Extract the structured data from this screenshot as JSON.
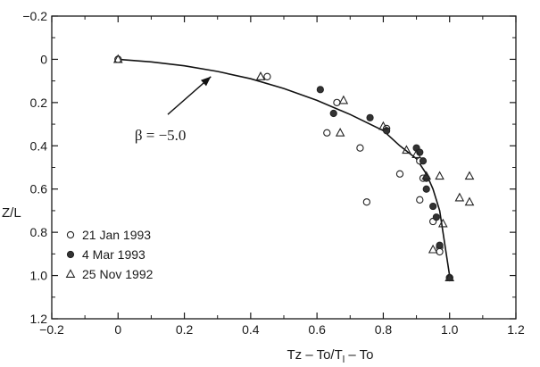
{
  "chart_data": {
    "type": "scatter",
    "title": "",
    "xlabel": "Tz – To/T",
    "xlabel_subscript": "l",
    "xlabel_suffix": " – To",
    "ylabel": "Z/L",
    "xlim": [
      -0.2,
      1.2
    ],
    "ylim": [
      -0.2,
      1.2
    ],
    "y_inverted": true,
    "x_ticks": [
      -0.2,
      0,
      0.2,
      0.4,
      0.6,
      0.8,
      1.0,
      1.2
    ],
    "x_tick_labels": [
      "−0.2",
      "0",
      "0.2",
      "0.4",
      "0.6",
      "0.8",
      "1.0",
      "1.2"
    ],
    "y_ticks": [
      -0.2,
      0,
      0.2,
      0.4,
      0.6,
      0.8,
      1.0,
      1.2
    ],
    "y_tick_labels": [
      "−0.2",
      "0",
      "0.2",
      "0.4",
      "0.6",
      "0.8",
      "1.0",
      "1.2"
    ],
    "grid": false,
    "legend_position": "bottom-left",
    "series": [
      {
        "name": "21 Jan 1993",
        "marker": "open-circle",
        "points": [
          [
            0.0,
            0.0
          ],
          [
            0.45,
            0.08
          ],
          [
            0.66,
            0.2
          ],
          [
            0.63,
            0.34
          ],
          [
            0.73,
            0.41
          ],
          [
            0.81,
            0.32
          ],
          [
            0.91,
            0.47
          ],
          [
            0.92,
            0.55
          ],
          [
            0.85,
            0.53
          ],
          [
            0.75,
            0.66
          ],
          [
            0.91,
            0.65
          ],
          [
            0.95,
            0.75
          ],
          [
            0.97,
            0.87
          ],
          [
            0.97,
            0.89
          ],
          [
            1.0,
            1.01
          ]
        ]
      },
      {
        "name": "4 Mar 1993",
        "marker": "filled-circle",
        "points": [
          [
            0.61,
            0.14
          ],
          [
            0.65,
            0.25
          ],
          [
            0.76,
            0.27
          ],
          [
            0.81,
            0.33
          ],
          [
            0.9,
            0.41
          ],
          [
            0.91,
            0.43
          ],
          [
            0.92,
            0.47
          ],
          [
            0.93,
            0.55
          ],
          [
            0.93,
            0.6
          ],
          [
            0.95,
            0.68
          ],
          [
            0.96,
            0.73
          ],
          [
            0.97,
            0.86
          ],
          [
            1.0,
            1.01
          ]
        ]
      },
      {
        "name": "25 Nov 1992",
        "marker": "open-triangle",
        "points": [
          [
            0.0,
            0.0
          ],
          [
            0.43,
            0.08
          ],
          [
            0.68,
            0.19
          ],
          [
            0.67,
            0.34
          ],
          [
            0.8,
            0.31
          ],
          [
            0.9,
            0.44
          ],
          [
            0.87,
            0.42
          ],
          [
            0.93,
            0.54
          ],
          [
            0.97,
            0.54
          ],
          [
            0.98,
            0.76
          ],
          [
            1.03,
            0.64
          ],
          [
            1.06,
            0.54
          ],
          [
            1.06,
            0.66
          ],
          [
            0.95,
            0.88
          ],
          [
            1.0,
            1.01
          ]
        ]
      }
    ],
    "curve": {
      "points": [
        [
          0.0,
          0.0
        ],
        [
          0.1,
          0.012
        ],
        [
          0.2,
          0.03
        ],
        [
          0.3,
          0.056
        ],
        [
          0.4,
          0.09
        ],
        [
          0.5,
          0.135
        ],
        [
          0.6,
          0.19
        ],
        [
          0.7,
          0.255
        ],
        [
          0.8,
          0.33
        ],
        [
          0.85,
          0.4
        ],
        [
          0.9,
          0.46
        ],
        [
          0.93,
          0.53
        ],
        [
          0.95,
          0.6
        ],
        [
          0.97,
          0.7
        ],
        [
          0.98,
          0.8
        ],
        [
          0.99,
          0.9
        ],
        [
          1.0,
          1.0
        ]
      ]
    },
    "annotation": {
      "text": "β = −5.0",
      "arrow_from": [
        0.15,
        0.255
      ],
      "arrow_to": [
        0.28,
        0.08
      ]
    }
  }
}
